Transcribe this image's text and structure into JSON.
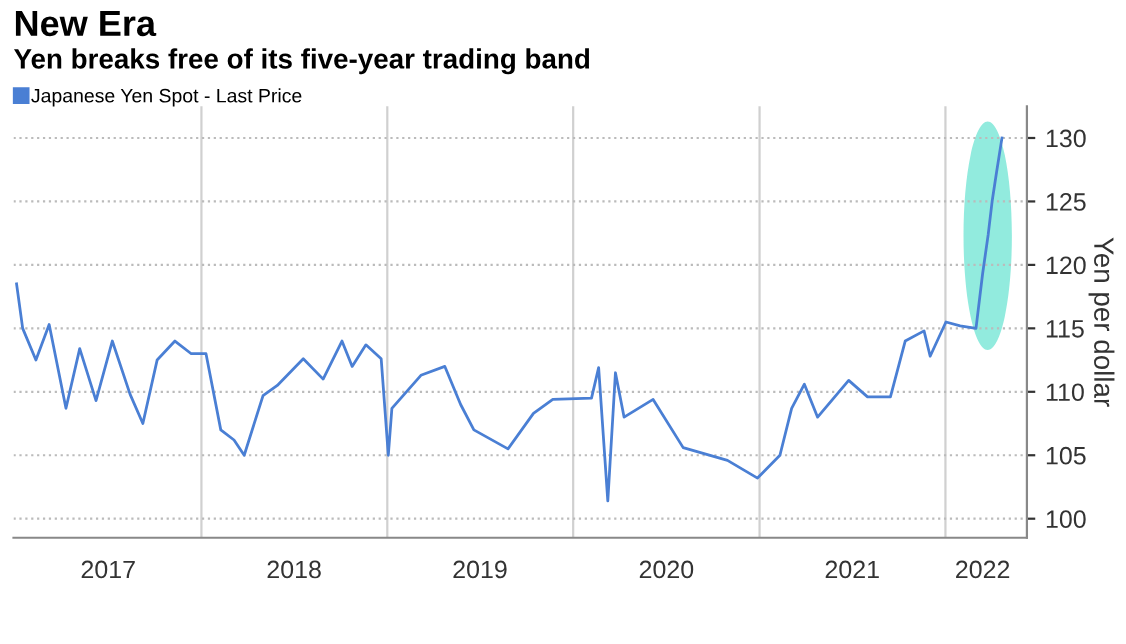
{
  "chart_data": {
    "type": "line",
    "title": "New Era",
    "subtitle": "Yen breaks free of its five-year trading band",
    "ylabel": "Yen per dollar",
    "x": [
      "2017-01-03",
      "2017-01-15",
      "2017-02-10",
      "2017-03-08",
      "2017-04-10",
      "2017-05-07",
      "2017-06-08",
      "2017-07-10",
      "2017-08-14",
      "2017-09-08",
      "2017-10-06",
      "2017-11-10",
      "2017-12-12",
      "2018-01-10",
      "2018-02-08",
      "2018-03-06",
      "2018-03-26",
      "2018-05-02",
      "2018-05-30",
      "2018-07-20",
      "2018-08-28",
      "2018-10-04",
      "2018-10-24",
      "2018-11-20",
      "2018-12-20",
      "2019-01-03",
      "2019-01-10",
      "2019-03-08",
      "2019-04-24",
      "2019-05-25",
      "2019-06-20",
      "2019-08-26",
      "2019-10-15",
      "2019-11-22",
      "2020-02-06",
      "2020-02-20",
      "2020-03-09",
      "2020-03-24",
      "2020-04-10",
      "2020-06-06",
      "2020-08-04",
      "2020-10-30",
      "2020-12-28",
      "2021-02-10",
      "2021-03-05",
      "2021-03-30",
      "2021-04-25",
      "2021-06-25",
      "2021-08-01",
      "2021-09-15",
      "2021-10-14",
      "2021-11-20",
      "2021-12-02",
      "2022-01-02",
      "2022-01-30",
      "2022-03-02",
      "2022-03-15",
      "2022-03-26",
      "2022-04-03",
      "2022-04-11",
      "2022-04-22"
    ],
    "series": [
      {
        "name": "Japanese Yen Spot - Last Price",
        "color": "#4a7fd4",
        "values": [
          118.5,
          115.0,
          112.5,
          115.3,
          108.7,
          113.4,
          109.3,
          114.0,
          109.8,
          107.5,
          112.5,
          114.0,
          113.0,
          113.0,
          107.0,
          106.2,
          105.0,
          109.7,
          110.5,
          112.6,
          111.0,
          114.0,
          112.0,
          113.7,
          112.6,
          105.0,
          108.7,
          111.3,
          112.0,
          109.0,
          107.0,
          105.5,
          108.3,
          109.4,
          109.5,
          111.9,
          101.4,
          111.5,
          108.0,
          109.4,
          105.6,
          104.6,
          103.2,
          105.0,
          108.7,
          110.6,
          108.0,
          110.9,
          109.6,
          109.6,
          114.0,
          114.8,
          112.8,
          115.5,
          115.2,
          115.0,
          119.3,
          122.4,
          125.1,
          127.2,
          130.0
        ]
      }
    ],
    "xlim": [
      "2016-12-28",
      "2022-06-10"
    ],
    "xticks": [
      {
        "value": "2017-07-02",
        "label": "2017"
      },
      {
        "value": "2018-07-02",
        "label": "2018"
      },
      {
        "value": "2019-07-02",
        "label": "2019"
      },
      {
        "value": "2020-07-02",
        "label": "2020"
      },
      {
        "value": "2021-07-02",
        "label": "2021"
      },
      {
        "value": "2022-03-15",
        "label": "2022"
      }
    ],
    "ylim": [
      98.5,
      132.5
    ],
    "yticks": [
      100,
      105,
      110,
      115,
      120,
      125,
      130
    ],
    "ref_lines": [
      {
        "axis": "x",
        "value": "2018-01-01",
        "color": "#d0d0d0"
      },
      {
        "axis": "x",
        "value": "2019-01-01",
        "color": "#d0d0d0"
      },
      {
        "axis": "x",
        "value": "2020-01-01",
        "color": "#d0d0d0"
      },
      {
        "axis": "x",
        "value": "2021-01-01",
        "color": "#d0d0d0"
      },
      {
        "axis": "x",
        "value": "2022-01-01",
        "color": "#d0d0d0"
      }
    ],
    "grid": "y",
    "legend": "top left",
    "marker": "none",
    "line_style": "solid"
  }
}
